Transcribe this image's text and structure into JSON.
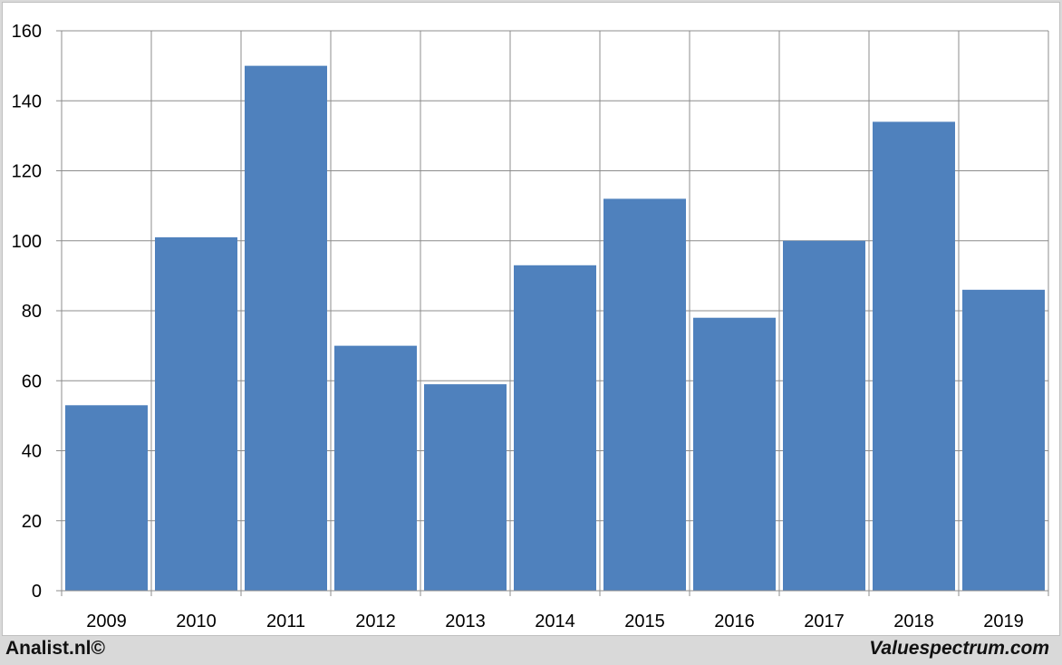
{
  "chart_data": {
    "type": "bar",
    "categories": [
      "2009",
      "2010",
      "2011",
      "2012",
      "2013",
      "2014",
      "2015",
      "2016",
      "2017",
      "2018",
      "2019"
    ],
    "values": [
      53,
      101,
      150,
      70,
      59,
      93,
      112,
      78,
      100,
      134,
      86
    ],
    "ylim": [
      0,
      160
    ],
    "yticks": [
      "0",
      "20",
      "40",
      "60",
      "80",
      "100",
      "120",
      "140",
      "160"
    ],
    "grid": true,
    "legend": "none",
    "bar_color": "#4f81bd",
    "grid_color": "#8c8c8c"
  },
  "footer": {
    "left_text": "Analist.nl©",
    "right_text": "Valuespectrum.com"
  }
}
